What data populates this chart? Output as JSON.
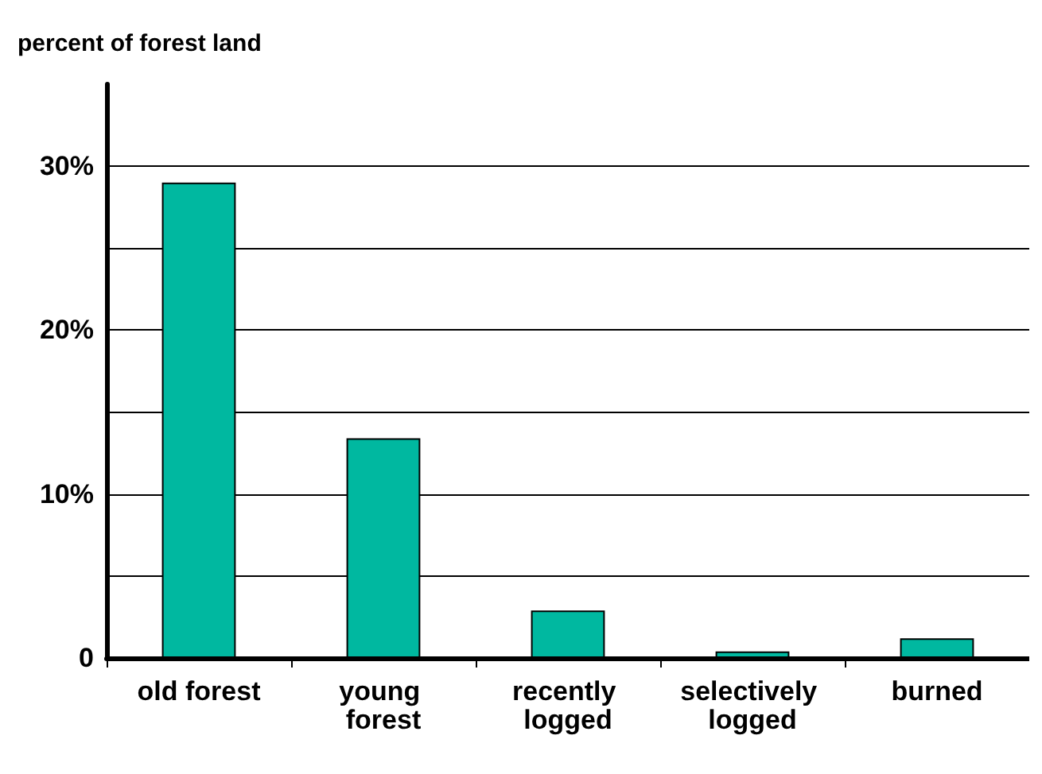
{
  "chart_data": {
    "type": "bar",
    "ylabel": "percent of forest land",
    "categories": [
      "old forest",
      "young forest",
      "recently logged",
      "selectively logged",
      "burned"
    ],
    "values": [
      29,
      13.4,
      2.9,
      0.4,
      1.2
    ],
    "color": "#00b8a0",
    "ylim": [
      0,
      35
    ],
    "yticks": [
      {
        "value": 0,
        "label": "0"
      },
      {
        "value": 5,
        "label": null
      },
      {
        "value": 10,
        "label": "10%"
      },
      {
        "value": 15,
        "label": null
      },
      {
        "value": 20,
        "label": "20%"
      },
      {
        "value": 25,
        "label": null
      },
      {
        "value": 30,
        "label": "30%"
      }
    ],
    "grid": "y"
  }
}
